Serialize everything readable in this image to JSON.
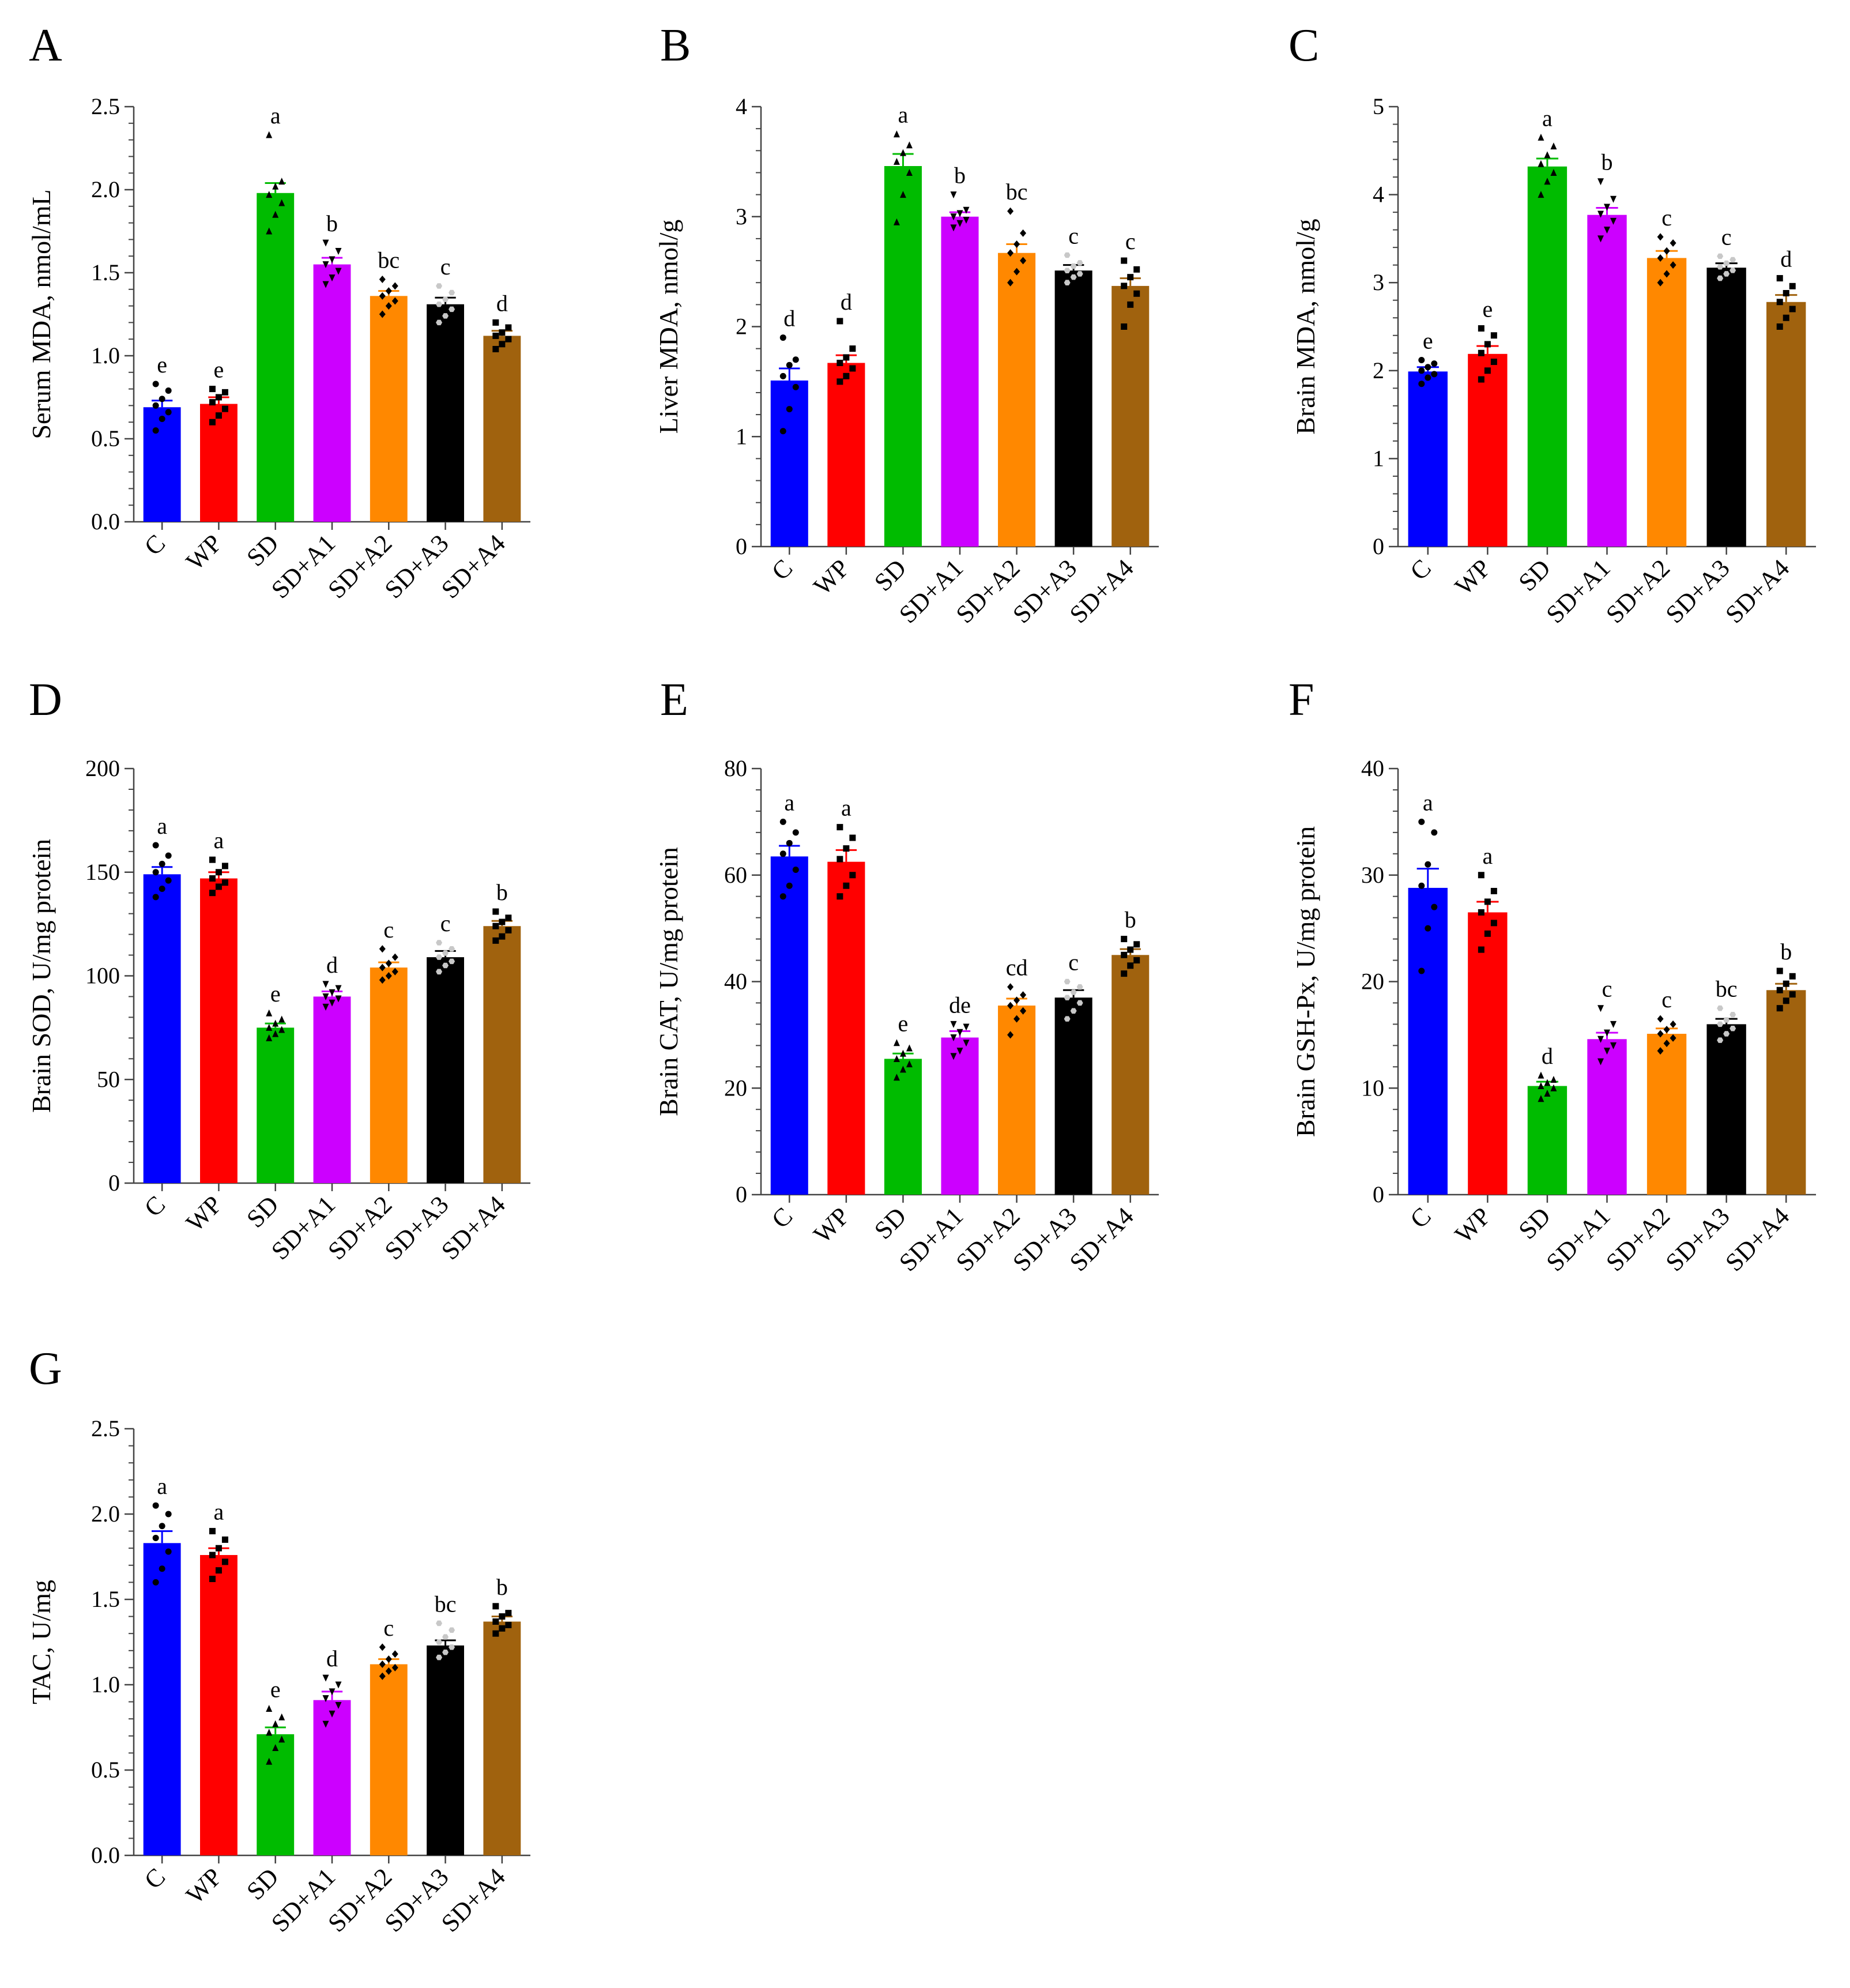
{
  "figure": {
    "category_colors": [
      "#0000FF",
      "#FF0000",
      "#00BB00",
      "#CC00FF",
      "#FF8800",
      "#000000",
      "#A0620E"
    ]
  },
  "chart_data": [
    {
      "panel": "A",
      "type": "bar",
      "title": "",
      "xlabel": "",
      "ylabel": "Serum MDA, nmol/mL",
      "categories": [
        "C",
        "WP",
        "SD",
        "SD+A1",
        "SD+A2",
        "SD+A3",
        "SD+A4"
      ],
      "values": [
        0.69,
        0.71,
        1.98,
        1.55,
        1.36,
        1.31,
        1.12
      ],
      "errors": [
        0.04,
        0.04,
        0.06,
        0.04,
        0.03,
        0.04,
        0.03
      ],
      "letters": [
        "e",
        "e",
        "a",
        "b",
        "bc",
        "c",
        "d"
      ],
      "points": [
        [
          0.55,
          0.62,
          0.66,
          0.7,
          0.74,
          0.79,
          0.83
        ],
        [
          0.6,
          0.64,
          0.68,
          0.72,
          0.75,
          0.78,
          0.8
        ],
        [
          1.75,
          1.85,
          1.92,
          1.97,
          2.02,
          2.05,
          2.33
        ],
        [
          1.43,
          1.47,
          1.51,
          1.55,
          1.58,
          1.63,
          1.68
        ],
        [
          1.25,
          1.3,
          1.33,
          1.36,
          1.39,
          1.42,
          1.46
        ],
        [
          1.2,
          1.24,
          1.28,
          1.31,
          1.34,
          1.38,
          1.42
        ],
        [
          1.04,
          1.07,
          1.1,
          1.12,
          1.14,
          1.17,
          1.2
        ]
      ],
      "ylim": [
        0,
        2.5
      ],
      "yticks": [
        "0.0",
        "0.5",
        "1.0",
        "1.5",
        "2.0",
        "2.5"
      ],
      "minor_per_major": 5
    },
    {
      "panel": "B",
      "type": "bar",
      "title": "",
      "xlabel": "",
      "ylabel": "Liver MDA, nmol/g",
      "categories": [
        "C",
        "WP",
        "SD",
        "SD+A1",
        "SD+A2",
        "SD+A3",
        "SD+A4"
      ],
      "values": [
        1.51,
        1.67,
        3.46,
        3.0,
        2.67,
        2.51,
        2.37
      ],
      "errors": [
        0.11,
        0.07,
        0.11,
        0.04,
        0.08,
        0.05,
        0.07
      ],
      "letters": [
        "d",
        "d",
        "a",
        "b",
        "bc",
        "c",
        "c"
      ],
      "points": [
        [
          1.05,
          1.25,
          1.45,
          1.55,
          1.65,
          1.7,
          1.9
        ],
        [
          1.5,
          1.55,
          1.62,
          1.67,
          1.72,
          1.8,
          2.05
        ],
        [
          2.95,
          3.2,
          3.4,
          3.5,
          3.58,
          3.65,
          3.75
        ],
        [
          2.9,
          2.94,
          2.97,
          3.0,
          3.03,
          3.06,
          3.2
        ],
        [
          2.4,
          2.5,
          2.6,
          2.67,
          2.75,
          2.85,
          3.05
        ],
        [
          2.4,
          2.45,
          2.48,
          2.51,
          2.55,
          2.58,
          2.65
        ],
        [
          2.0,
          2.2,
          2.3,
          2.37,
          2.45,
          2.52,
          2.6
        ]
      ],
      "ylim": [
        0,
        4
      ],
      "yticks": [
        "0",
        "1",
        "2",
        "3",
        "4"
      ],
      "minor_per_major": 5
    },
    {
      "panel": "C",
      "type": "bar",
      "title": "",
      "xlabel": "",
      "ylabel": "Brain MDA, nmol/g",
      "categories": [
        "C",
        "WP",
        "SD",
        "SD+A1",
        "SD+A2",
        "SD+A3",
        "SD+A4"
      ],
      "values": [
        1.99,
        2.19,
        4.32,
        3.77,
        3.28,
        3.17,
        2.78
      ],
      "errors": [
        0.05,
        0.09,
        0.09,
        0.08,
        0.08,
        0.05,
        0.08
      ],
      "letters": [
        "e",
        "e",
        "a",
        "b",
        "c",
        "c",
        "d"
      ],
      "points": [
        [
          1.85,
          1.92,
          1.96,
          2.0,
          2.04,
          2.08,
          2.12
        ],
        [
          1.9,
          2.0,
          2.1,
          2.2,
          2.3,
          2.4,
          2.48
        ],
        [
          4.0,
          4.15,
          4.25,
          4.35,
          4.45,
          4.55,
          4.65
        ],
        [
          3.5,
          3.6,
          3.7,
          3.78,
          3.86,
          3.95,
          4.15
        ],
        [
          3.0,
          3.1,
          3.2,
          3.28,
          3.36,
          3.45,
          3.52
        ],
        [
          3.05,
          3.1,
          3.14,
          3.18,
          3.22,
          3.26,
          3.3
        ],
        [
          2.5,
          2.6,
          2.7,
          2.78,
          2.88,
          2.96,
          3.05
        ]
      ],
      "ylim": [
        0,
        5
      ],
      "yticks": [
        "0",
        "1",
        "2",
        "3",
        "4",
        "5"
      ],
      "minor_per_major": 5
    },
    {
      "panel": "D",
      "type": "bar",
      "title": "",
      "xlabel": "",
      "ylabel": "Brain  SOD, U/mg protein",
      "categories": [
        "C",
        "WP",
        "SD",
        "SD+A1",
        "SD+A2",
        "SD+A3",
        "SD+A4"
      ],
      "values": [
        149,
        147,
        75,
        90,
        104,
        109,
        124
      ],
      "errors": [
        3.5,
        3.0,
        2.0,
        2.5,
        2.5,
        3.0,
        2.5
      ],
      "letters": [
        "a",
        "a",
        "e",
        "d",
        "c",
        "c",
        "b"
      ],
      "points": [
        [
          138,
          142,
          146,
          150,
          154,
          158,
          163
        ],
        [
          140,
          143,
          145,
          147,
          150,
          153,
          156
        ],
        [
          70,
          72,
          74,
          75,
          77,
          79,
          82
        ],
        [
          85,
          87,
          89,
          90,
          92,
          94,
          96
        ],
        [
          98,
          100,
          102,
          104,
          106,
          109,
          113
        ],
        [
          102,
          105,
          107,
          109,
          111,
          113,
          116
        ],
        [
          117,
          119,
          122,
          124,
          126,
          128,
          131
        ]
      ],
      "ylim": [
        0,
        200
      ],
      "yticks": [
        "0",
        "50",
        "100",
        "150",
        "200"
      ],
      "minor_per_major": 5
    },
    {
      "panel": "E",
      "type": "bar",
      "title": "",
      "xlabel": "",
      "ylabel": "Brain  CAT, U/mg protein",
      "categories": [
        "C",
        "WP",
        "SD",
        "SD+A1",
        "SD+A2",
        "SD+A3",
        "SD+A4"
      ],
      "values": [
        63.5,
        62.5,
        25.5,
        29.5,
        35.5,
        37.0,
        45.0
      ],
      "errors": [
        2.0,
        2.2,
        1.0,
        1.2,
        1.3,
        1.4,
        1.1
      ],
      "letters": [
        "a",
        "a",
        "e",
        "de",
        "cd",
        "c",
        "b"
      ],
      "points": [
        [
          56,
          58,
          61,
          64,
          66,
          68,
          70
        ],
        [
          56,
          58,
          60,
          63,
          65,
          67,
          69
        ],
        [
          22,
          23.5,
          24.5,
          25.5,
          26.5,
          27.5,
          28.5
        ],
        [
          26,
          27,
          28.5,
          29.5,
          30.5,
          31.5,
          32
        ],
        [
          30,
          33,
          34.5,
          35.5,
          36.5,
          37.5,
          39
        ],
        [
          33,
          34.5,
          36,
          37,
          38,
          39,
          40
        ],
        [
          41.5,
          43,
          44,
          45,
          46,
          47,
          48
        ]
      ],
      "ylim": [
        0,
        80
      ],
      "yticks": [
        "0",
        "20",
        "40",
        "60",
        "80"
      ],
      "minor_per_major": 5
    },
    {
      "panel": "F",
      "type": "bar",
      "title": "",
      "xlabel": "",
      "ylabel": "Brain GSH-Px, U/mg protein",
      "categories": [
        "C",
        "WP",
        "SD",
        "SD+A1",
        "SD+A2",
        "SD+A3",
        "SD+A4"
      ],
      "values": [
        28.8,
        26.5,
        10.2,
        14.6,
        15.1,
        16.0,
        19.2
      ],
      "errors": [
        1.8,
        1.0,
        0.4,
        0.6,
        0.5,
        0.5,
        0.6
      ],
      "letters": [
        "a",
        "a",
        "d",
        "c",
        "c",
        "bc",
        "b"
      ],
      "points": [
        [
          21,
          25,
          27,
          29,
          31,
          34,
          35
        ],
        [
          23,
          24.5,
          25.5,
          26.5,
          27.5,
          28.5,
          30
        ],
        [
          9,
          9.5,
          10,
          10.2,
          10.5,
          10.8,
          11.2
        ],
        [
          12.5,
          13.5,
          14,
          14.6,
          15.2,
          16,
          17.5
        ],
        [
          13.5,
          14.2,
          14.7,
          15.1,
          15.5,
          16,
          16.5
        ],
        [
          14.5,
          15.1,
          15.6,
          16,
          16.4,
          16.9,
          17.5
        ],
        [
          17.5,
          18.2,
          18.8,
          19.2,
          19.8,
          20.5,
          21
        ]
      ],
      "ylim": [
        0,
        40
      ],
      "yticks": [
        "0",
        "10",
        "20",
        "30",
        "40"
      ],
      "minor_per_major": 5
    },
    {
      "panel": "G",
      "type": "bar",
      "title": "",
      "xlabel": "",
      "ylabel": "TAC, U/mg",
      "categories": [
        "C",
        "WP",
        "SD",
        "SD+A1",
        "SD+A2",
        "SD+A3",
        "SD+A4"
      ],
      "values": [
        1.83,
        1.76,
        0.71,
        0.91,
        1.12,
        1.23,
        1.37
      ],
      "errors": [
        0.07,
        0.04,
        0.04,
        0.05,
        0.03,
        0.03,
        0.03
      ],
      "letters": [
        "a",
        "a",
        "e",
        "d",
        "c",
        "bc",
        "b"
      ],
      "points": [
        [
          1.6,
          1.68,
          1.78,
          1.86,
          1.93,
          2.0,
          2.05
        ],
        [
          1.62,
          1.67,
          1.72,
          1.76,
          1.8,
          1.85,
          1.9
        ],
        [
          0.55,
          0.63,
          0.68,
          0.72,
          0.77,
          0.81,
          0.86
        ],
        [
          0.77,
          0.83,
          0.88,
          0.92,
          0.96,
          1.0,
          1.04
        ],
        [
          1.05,
          1.08,
          1.1,
          1.12,
          1.15,
          1.18,
          1.22
        ],
        [
          1.16,
          1.19,
          1.22,
          1.25,
          1.28,
          1.32,
          1.36
        ],
        [
          1.3,
          1.33,
          1.35,
          1.37,
          1.4,
          1.42,
          1.46
        ]
      ],
      "ylim": [
        0,
        2.5
      ],
      "yticks": [
        "0.0",
        "0.5",
        "1.0",
        "1.5",
        "2.0",
        "2.5"
      ],
      "minor_per_major": 5
    }
  ]
}
